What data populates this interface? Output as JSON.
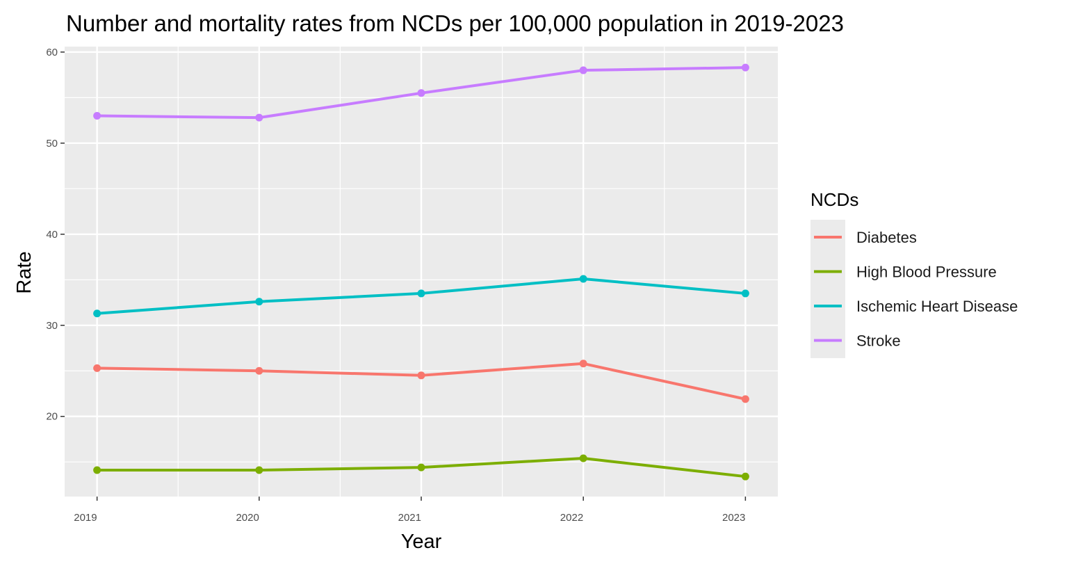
{
  "chart_data": {
    "type": "line",
    "title": "Number and mortality rates from NCDs per 100,000 population in 2019-2023",
    "xlabel": "Year",
    "ylabel": "Rate",
    "x": [
      2019,
      2020,
      2021,
      2022,
      2023
    ],
    "x_tick_labels": [
      "2019",
      "2020",
      "2021",
      "2022",
      "2023"
    ],
    "xlim": [
      2018.8,
      2023.2
    ],
    "ylim": [
      11.2,
      60.6
    ],
    "y_ticks": [
      20,
      30,
      40,
      50,
      60
    ],
    "y_tick_labels": [
      "20",
      "30",
      "40",
      "50",
      "60"
    ],
    "grid": true,
    "legend": {
      "title": "NCDs",
      "position": "right"
    },
    "series": [
      {
        "name": "Diabetes",
        "color": "#f8766d",
        "values": [
          25.3,
          25.0,
          24.5,
          25.8,
          21.9
        ]
      },
      {
        "name": "High Blood Pressure",
        "color": "#7cae00",
        "values": [
          14.1,
          14.1,
          14.4,
          15.4,
          13.4
        ]
      },
      {
        "name": "Ischemic Heart Disease",
        "color": "#00bfc4",
        "values": [
          31.3,
          32.6,
          33.5,
          35.1,
          33.5
        ]
      },
      {
        "name": "Stroke",
        "color": "#c77cff",
        "values": [
          53.0,
          52.8,
          55.5,
          58.0,
          58.3
        ]
      }
    ],
    "panel_background": "#ebebeb",
    "grid_color": "#ffffff"
  }
}
